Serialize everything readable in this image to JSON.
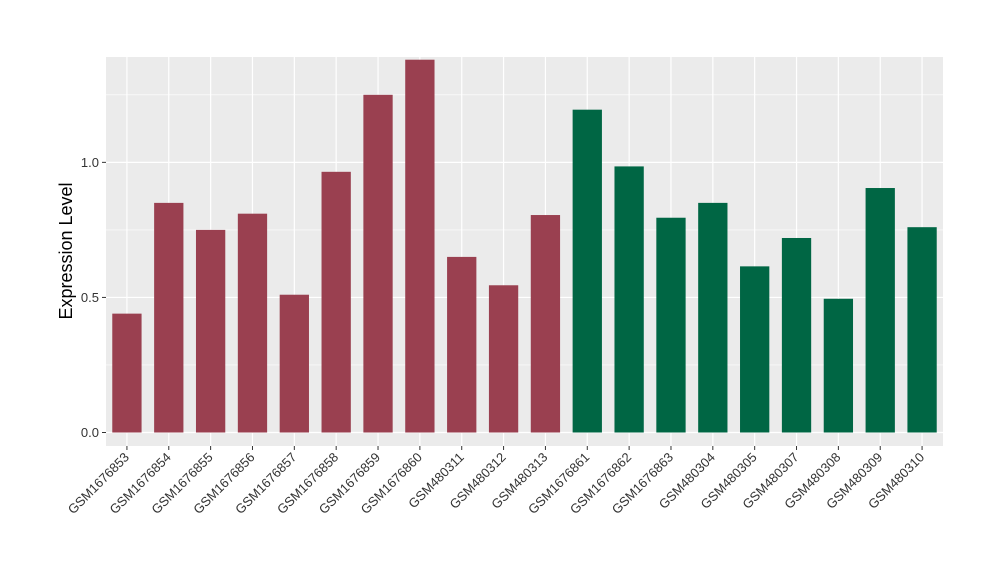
{
  "chart_data": {
    "type": "bar",
    "title": "",
    "xlabel": "",
    "ylabel": "Expression Level",
    "ylim": [
      -0.05,
      1.39
    ],
    "yticks": [
      0.0,
      0.5,
      1.0
    ],
    "ytick_labels": [
      "0.0",
      "0.5",
      "1.0"
    ],
    "grid": true,
    "legend": "none",
    "categories": [
      "GSM1676853",
      "GSM1676854",
      "GSM1676855",
      "GSM1676856",
      "GSM1676857",
      "GSM1676858",
      "GSM1676859",
      "GSM1676860",
      "GSM480311",
      "GSM480312",
      "GSM480313",
      "GSM1676861",
      "GSM1676862",
      "GSM1676863",
      "GSM480304",
      "GSM480305",
      "GSM480307",
      "GSM480308",
      "GSM480309",
      "GSM480310"
    ],
    "values": [
      0.44,
      0.85,
      0.75,
      0.81,
      0.51,
      0.965,
      1.25,
      1.38,
      0.65,
      0.545,
      0.805,
      1.195,
      0.985,
      0.795,
      0.85,
      0.615,
      0.72,
      0.495,
      0.905,
      0.76
    ],
    "bar_colors": [
      "#9a4050",
      "#9a4050",
      "#9a4050",
      "#9a4050",
      "#9a4050",
      "#9a4050",
      "#9a4050",
      "#9a4050",
      "#9a4050",
      "#9a4050",
      "#9a4050",
      "#006644",
      "#006644",
      "#006644",
      "#006644",
      "#006644",
      "#006644",
      "#006644",
      "#006644",
      "#006644"
    ],
    "panel_background": "#ebebeb",
    "grid_color": "#ffffff"
  }
}
